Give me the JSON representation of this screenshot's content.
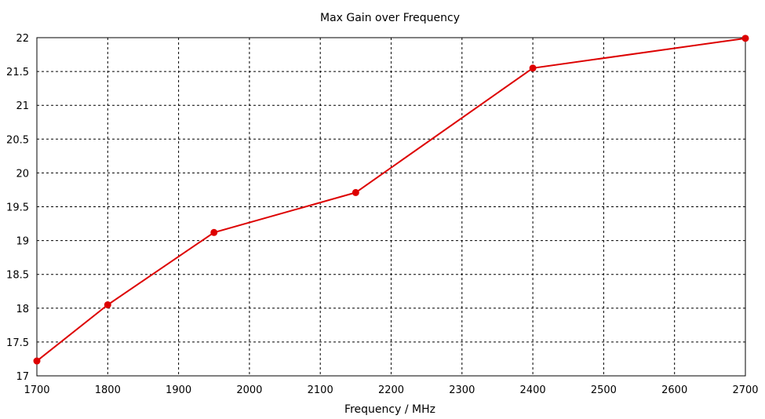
{
  "chart_data": {
    "type": "line",
    "title": "Max Gain over Frequency",
    "xlabel": "Frequency / MHz",
    "ylabel": "",
    "xlim": [
      1700,
      2700
    ],
    "ylim": [
      17,
      22
    ],
    "xticks": [
      "1700",
      "1800",
      "1900",
      "2000",
      "2100",
      "2200",
      "2300",
      "2400",
      "2500",
      "2600",
      "2700"
    ],
    "yticks": [
      "17",
      "17.5",
      "18",
      "18.5",
      "19",
      "19.5",
      "20",
      "20.5",
      "21",
      "21.5",
      "22"
    ],
    "grid": true,
    "series": [
      {
        "color": "#dd0000",
        "x": [
          1700,
          1800,
          1950,
          2150,
          2400,
          2700
        ],
        "y": [
          17.22,
          18.05,
          19.12,
          19.71,
          21.55,
          21.99
        ]
      }
    ]
  }
}
